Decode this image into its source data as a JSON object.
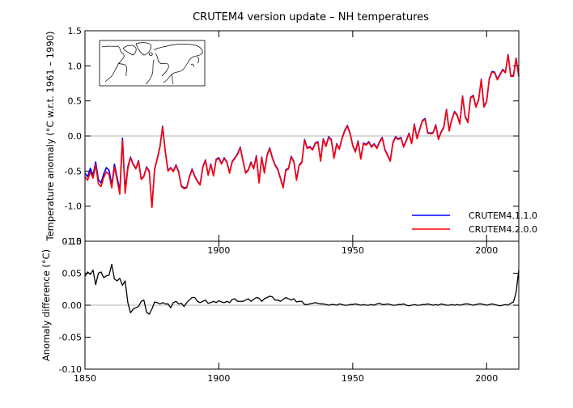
{
  "chart_data": [
    {
      "type": "line",
      "title": "CRUTEM4 version update – NH temperatures",
      "ylabel": "Temperature anomaly (°C w.r.t. 1961 – 1990)",
      "xlim": [
        1850,
        2012
      ],
      "ylim": [
        -1.5,
        1.5
      ],
      "yticks": [
        "1.5",
        "1.0",
        "0.5",
        "0.0",
        "-0.5",
        "-1.0",
        "-1.5"
      ],
      "xticks": [
        "1900",
        "1950",
        "2000"
      ],
      "zero_line": true,
      "legend_position": "bottom-right",
      "inset": "northern-hemisphere-map",
      "x_start": 1850,
      "series": [
        {
          "name": "CRUTEM4.1.1.0",
          "color": "#0000ff",
          "values": [
            -0.53,
            -0.58,
            -0.46,
            -0.56,
            -0.37,
            -0.62,
            -0.67,
            -0.54,
            -0.45,
            -0.49,
            -0.7,
            -0.4,
            -0.59,
            -0.78,
            -0.03,
            -0.78,
            -0.44,
            -0.3,
            -0.4,
            -0.46,
            -0.35,
            -0.61,
            -0.57,
            -0.44,
            -0.5,
            -1.01,
            -0.47,
            -0.32,
            -0.15,
            0.14,
            -0.22,
            -0.49,
            -0.45,
            -0.5,
            -0.41,
            -0.51,
            -0.71,
            -0.74,
            -0.73,
            -0.58,
            -0.47,
            -0.57,
            -0.64,
            -0.69,
            -0.44,
            -0.34,
            -0.55,
            -0.4,
            -0.56,
            -0.33,
            -0.31,
            -0.39,
            -0.31,
            -0.37,
            -0.52,
            -0.36,
            -0.31,
            -0.25,
            -0.16,
            -0.35,
            -0.52,
            -0.48,
            -0.37,
            -0.46,
            -0.28,
            -0.66,
            -0.3,
            -0.52,
            -0.27,
            -0.17,
            -0.31,
            -0.41,
            -0.47,
            -0.6,
            -0.73,
            -0.48,
            -0.46,
            -0.29,
            -0.36,
            -0.62,
            -0.41,
            -0.37,
            -0.05,
            -0.17,
            -0.15,
            -0.19,
            -0.1,
            -0.08,
            -0.35,
            -0.04,
            -0.14,
            -0.01,
            -0.05,
            -0.31,
            -0.11,
            -0.18,
            -0.03,
            0.08,
            0.15,
            0.04,
            -0.13,
            -0.22,
            -0.07,
            -0.32,
            -0.1,
            -0.12,
            -0.08,
            -0.15,
            -0.11,
            -0.17,
            -0.08,
            -0.02,
            -0.19,
            -0.27,
            -0.35,
            -0.09,
            -0.01,
            -0.04,
            -0.02,
            -0.15,
            -0.06,
            0.04,
            -0.1,
            0.17,
            -0.03,
            0.1,
            0.22,
            0.25,
            0.05,
            0.04,
            0.05,
            0.16,
            -0.04,
            0.06,
            0.13,
            0.38,
            0.08,
            0.24,
            0.35,
            0.3,
            0.18,
            0.57,
            0.28,
            0.2,
            0.55,
            0.58,
            0.42,
            0.52,
            0.81,
            0.42,
            0.5,
            0.82,
            0.92,
            0.91,
            0.81,
            0.88,
            0.95,
            0.91,
            1.16,
            0.86,
            0.86,
            1.11,
            0.85
          ]
        },
        {
          "name": "CRUTEM4.2.0.0",
          "color": "#ff0000",
          "values": [
            -0.58,
            -0.63,
            -0.51,
            -0.6,
            -0.41,
            -0.68,
            -0.72,
            -0.59,
            -0.51,
            -0.55,
            -0.74,
            -0.44,
            -0.63,
            -0.83,
            -0.06,
            -0.82,
            -0.47,
            -0.31,
            -0.41,
            -0.47,
            -0.36,
            -0.62,
            -0.58,
            -0.45,
            -0.51,
            -1.02,
            -0.48,
            -0.33,
            -0.16,
            0.13,
            -0.23,
            -0.5,
            -0.46,
            -0.51,
            -0.42,
            -0.52,
            -0.72,
            -0.75,
            -0.74,
            -0.59,
            -0.48,
            -0.58,
            -0.65,
            -0.7,
            -0.45,
            -0.35,
            -0.56,
            -0.41,
            -0.57,
            -0.34,
            -0.32,
            -0.4,
            -0.32,
            -0.38,
            -0.53,
            -0.37,
            -0.32,
            -0.26,
            -0.17,
            -0.36,
            -0.53,
            -0.49,
            -0.38,
            -0.47,
            -0.29,
            -0.67,
            -0.31,
            -0.53,
            -0.28,
            -0.18,
            -0.32,
            -0.42,
            -0.48,
            -0.61,
            -0.74,
            -0.49,
            -0.47,
            -0.3,
            -0.37,
            -0.63,
            -0.42,
            -0.38,
            -0.06,
            -0.18,
            -0.16,
            -0.2,
            -0.11,
            -0.09,
            -0.36,
            -0.05,
            -0.15,
            -0.02,
            -0.06,
            -0.32,
            -0.12,
            -0.19,
            -0.04,
            0.07,
            0.14,
            0.03,
            -0.14,
            -0.23,
            -0.08,
            -0.33,
            -0.11,
            -0.13,
            -0.09,
            -0.16,
            -0.12,
            -0.18,
            -0.09,
            -0.03,
            -0.2,
            -0.28,
            -0.36,
            -0.1,
            -0.02,
            -0.05,
            -0.03,
            -0.16,
            -0.07,
            0.03,
            -0.11,
            0.16,
            -0.04,
            0.09,
            0.21,
            0.24,
            0.04,
            0.03,
            0.04,
            0.15,
            -0.05,
            0.05,
            0.12,
            0.37,
            0.07,
            0.23,
            0.34,
            0.29,
            0.17,
            0.56,
            0.27,
            0.19,
            0.54,
            0.57,
            0.41,
            0.51,
            0.8,
            0.41,
            0.49,
            0.81,
            0.91,
            0.9,
            0.8,
            0.87,
            0.94,
            0.9,
            1.15,
            0.85,
            0.85,
            1.1,
            0.86
          ]
        }
      ]
    },
    {
      "type": "line",
      "ylabel": "Anomaly difference (°C)",
      "xlim": [
        1850,
        2012
      ],
      "ylim": [
        -0.1,
        0.1
      ],
      "yticks": [
        "0.10",
        "0.05",
        "0.00",
        "-0.05",
        "-0.10"
      ],
      "xticks": [
        "1850",
        "1900",
        "1950",
        "2000"
      ],
      "zero_line": true,
      "x_start": 1850,
      "series": [
        {
          "color": "#000000",
          "values": [
            0.045,
            0.052,
            0.048,
            0.055,
            0.032,
            0.05,
            0.052,
            0.043,
            0.046,
            0.047,
            0.064,
            0.041,
            0.038,
            0.042,
            0.031,
            0.038,
            0.004,
            -0.012,
            -0.006,
            -0.004,
            -0.002,
            0.006,
            0.008,
            -0.011,
            -0.014,
            -0.006,
            0.005,
            0.004,
            0.002,
            0.004,
            0.002,
            0.002,
            -0.004,
            0.004,
            0.006,
            0.002,
            0.003,
            -0.002,
            0.004,
            0.008,
            0.012,
            0.012,
            0.006,
            0.004,
            0.006,
            0.008,
            0.003,
            0.004,
            0.006,
            0.004,
            0.007,
            0.005,
            0.004,
            0.006,
            0.004,
            0.009,
            0.01,
            0.006,
            0.006,
            0.006,
            0.008,
            0.01,
            0.006,
            0.009,
            0.012,
            0.011,
            0.006,
            0.01,
            0.012,
            0.014,
            0.013,
            0.008,
            0.008,
            0.006,
            0.009,
            0.012,
            0.01,
            0.008,
            0.01,
            0.005,
            0.006,
            0.006,
            0.001,
            0.001,
            0.002,
            0.003,
            0.004,
            0.003,
            0.002,
            0.002,
            0.001,
            0.0,
            0.001,
            0.001,
            0.0,
            0.002,
            0.001,
            0.0,
            0.0,
            0.001,
            0.001,
            0.002,
            0.001,
            0.0,
            0.001,
            0.0,
            0.0,
            0.001,
            0.0,
            0.002,
            0.003,
            0.001,
            0.001,
            0.002,
            0.001,
            0.0,
            0.0,
            0.001,
            0.001,
            0.002,
            0.0,
            -0.001,
            0.0,
            0.001,
            0.0,
            0.0,
            0.001,
            0.001,
            0.002,
            0.001,
            0.0,
            0.001,
            0.0,
            0.002,
            0.001,
            0.0,
            0.0,
            0.001,
            0.0,
            0.001,
            0.0,
            0.001,
            0.002,
            0.002,
            0.001,
            0.0,
            0.001,
            0.002,
            0.002,
            0.001,
            0.0,
            0.001,
            0.002,
            0.001,
            0.0,
            -0.001,
            0.0,
            0.001,
            0.0,
            0.003,
            0.005,
            0.02,
            0.055
          ]
        }
      ]
    }
  ]
}
